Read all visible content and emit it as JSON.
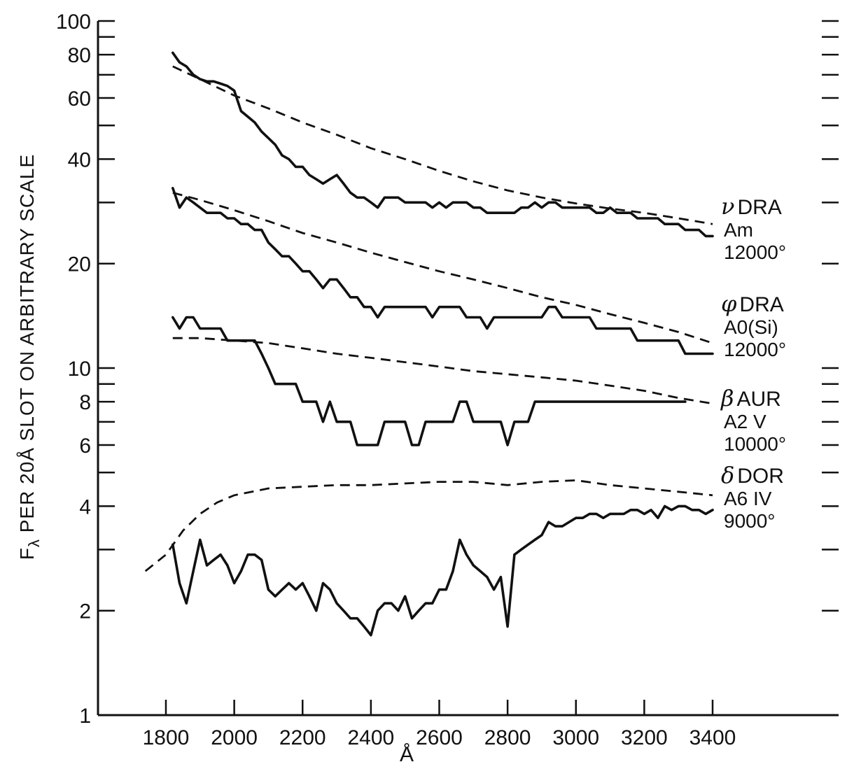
{
  "chart_data": {
    "type": "line",
    "xlabel": "Å",
    "ylabel": "F",
    "ylabel_sub": "λ",
    "ylabel_rest": " PER 20Å SLOT ON ARBITRARY SCALE",
    "xlim": [
      1600,
      3500
    ],
    "ylim": [
      1,
      100
    ],
    "y_scale": "log",
    "grid": false,
    "x_ticks": [
      1800,
      2000,
      2200,
      2400,
      2600,
      2800,
      3000,
      3200,
      3400
    ],
    "x_tick_labels": [
      "1800",
      "2000",
      "2200",
      "2400",
      "2600",
      "2800",
      "3000",
      "3200",
      "3400"
    ],
    "y_ticks_labeled": [
      1,
      2,
      4,
      6,
      8,
      10,
      20,
      40,
      60,
      80,
      100
    ],
    "y_tick_labels": [
      "1",
      "2",
      "4",
      "6",
      "8",
      "10",
      "20",
      "40",
      "60",
      "80",
      "100"
    ],
    "y_ticks_minor": [
      3,
      5,
      7,
      9,
      30,
      50,
      70,
      90
    ],
    "stars": [
      {
        "greek": "ν",
        "name": "DRA",
        "type": "Am",
        "temp": "12000°",
        "observed": {
          "x": [
            1820,
            1840,
            1860,
            1880,
            1900,
            1920,
            1940,
            1960,
            1980,
            2000,
            2020,
            2040,
            2060,
            2080,
            2100,
            2120,
            2140,
            2160,
            2180,
            2200,
            2220,
            2240,
            2260,
            2280,
            2300,
            2320,
            2340,
            2360,
            2380,
            2400,
            2420,
            2440,
            2460,
            2480,
            2500,
            2520,
            2540,
            2560,
            2580,
            2600,
            2620,
            2640,
            2660,
            2680,
            2700,
            2720,
            2740,
            2760,
            2780,
            2800,
            2820,
            2840,
            2860,
            2880,
            2900,
            2920,
            2940,
            2960,
            2980,
            3000,
            3020,
            3040,
            3060,
            3080,
            3100,
            3120,
            3140,
            3160,
            3180,
            3200,
            3220,
            3240,
            3260,
            3280,
            3300,
            3320,
            3340,
            3360,
            3380,
            3400
          ],
          "y": [
            81,
            76,
            74,
            70,
            68,
            67,
            67,
            66,
            65,
            63,
            55,
            53,
            51,
            48,
            46,
            44,
            41,
            40,
            38,
            38,
            36,
            35,
            34,
            35,
            36,
            34,
            32,
            31,
            31,
            30,
            29,
            31,
            31,
            31,
            30,
            30,
            30,
            30,
            29,
            30,
            29,
            30,
            30,
            30,
            29,
            29,
            28,
            28,
            28,
            28,
            28,
            29,
            29,
            30,
            29,
            30,
            30,
            29,
            29,
            29,
            29,
            29,
            28,
            28,
            29,
            28,
            28,
            28,
            27,
            27,
            27,
            27,
            26,
            26,
            26,
            25,
            25,
            25,
            24,
            24
          ]
        },
        "fit": {
          "x": [
            1820,
            1900,
            2000,
            2100,
            2200,
            2300,
            2400,
            2500,
            2600,
            2700,
            2800,
            2900,
            3000,
            3100,
            3200,
            3300,
            3400
          ],
          "y": [
            74,
            68,
            61,
            56,
            51,
            47,
            43,
            40,
            37,
            34.5,
            32.5,
            31,
            29.8,
            28.8,
            28,
            27,
            26
          ]
        }
      },
      {
        "greek": "φ",
        "name": "DRA",
        "type": "A0(Si)",
        "temp": "12000°",
        "observed": {
          "x": [
            1820,
            1840,
            1860,
            1880,
            1900,
            1920,
            1940,
            1960,
            1980,
            2000,
            2020,
            2040,
            2060,
            2080,
            2100,
            2120,
            2140,
            2160,
            2180,
            2200,
            2220,
            2240,
            2260,
            2280,
            2300,
            2320,
            2340,
            2360,
            2380,
            2400,
            2420,
            2440,
            2460,
            2480,
            2500,
            2520,
            2540,
            2560,
            2580,
            2600,
            2620,
            2640,
            2660,
            2680,
            2700,
            2720,
            2740,
            2760,
            2780,
            2800,
            2820,
            2840,
            2860,
            2880,
            2900,
            2920,
            2940,
            2960,
            2980,
            3000,
            3020,
            3040,
            3060,
            3080,
            3100,
            3120,
            3140,
            3160,
            3180,
            3200,
            3220,
            3240,
            3260,
            3280,
            3300,
            3320,
            3340,
            3360,
            3380,
            3400
          ],
          "y": [
            33,
            29,
            31,
            30,
            29,
            28,
            28,
            28,
            27,
            27,
            26,
            26,
            25,
            25,
            23,
            22,
            21,
            21,
            20,
            19,
            19,
            18,
            17,
            18,
            18,
            17,
            16,
            16,
            15,
            15,
            14,
            15,
            15,
            15,
            15,
            15,
            15,
            15,
            14,
            15,
            15,
            15,
            15,
            14,
            14,
            14,
            13,
            14,
            14,
            14,
            14,
            14,
            14,
            14,
            14,
            15,
            15,
            14,
            14,
            14,
            14,
            14,
            13,
            13,
            13,
            13,
            13,
            13,
            12,
            12,
            12,
            12,
            12,
            12,
            12,
            11,
            11,
            11,
            11,
            11
          ]
        },
        "fit": {
          "x": [
            1820,
            1900,
            2000,
            2100,
            2200,
            2300,
            2400,
            2500,
            2600,
            2700,
            2800,
            2900,
            3000,
            3100,
            3200,
            3300,
            3400
          ],
          "y": [
            32,
            30.5,
            28.5,
            26.5,
            24.5,
            23,
            21.5,
            20.2,
            19,
            18,
            17,
            16,
            15.2,
            14.3,
            13.5,
            12.7,
            11.8
          ]
        }
      },
      {
        "greek": "β",
        "name": "AUR",
        "type": "A2 V",
        "temp": "10000°",
        "observed": {
          "x": [
            1820,
            1840,
            1860,
            1880,
            1900,
            1920,
            1940,
            1960,
            1980,
            2000,
            2020,
            2040,
            2060,
            2080,
            2100,
            2120,
            2140,
            2160,
            2180,
            2200,
            2220,
            2240,
            2260,
            2280,
            2300,
            2320,
            2340,
            2360,
            2380,
            2400,
            2420,
            2440,
            2460,
            2480,
            2500,
            2520,
            2540,
            2560,
            2580,
            2600,
            2620,
            2640,
            2660,
            2680,
            2700,
            2720,
            2740,
            2760,
            2780,
            2800,
            2820,
            2840,
            2860,
            2880,
            2900,
            2920,
            2940,
            2960,
            2980,
            3000,
            3020,
            3040,
            3060,
            3080,
            3100,
            3120,
            3140,
            3160,
            3180,
            3200,
            3220,
            3240,
            3260,
            3280,
            3300,
            3320
          ],
          "y": [
            14,
            13,
            14,
            14,
            13,
            13,
            13,
            13,
            12,
            12,
            12,
            12,
            12,
            11,
            10,
            9,
            9,
            9,
            9,
            8,
            8,
            8,
            7,
            8,
            7,
            7,
            7,
            6,
            6,
            6,
            6,
            7,
            7,
            7,
            7,
            6,
            6,
            7,
            7,
            7,
            7,
            7,
            8,
            8,
            7,
            7,
            7,
            7,
            7,
            6,
            7,
            7,
            7,
            8,
            8,
            8,
            8,
            8,
            8,
            8,
            8,
            8,
            8,
            8,
            8,
            8,
            8,
            8,
            8,
            8,
            8,
            8,
            8,
            8,
            8,
            8
          ]
        },
        "fit": {
          "x": [
            1820,
            1900,
            2000,
            2100,
            2200,
            2300,
            2400,
            2500,
            2600,
            2700,
            2800,
            2900,
            3000,
            3100,
            3200,
            3300,
            3400
          ],
          "y": [
            12.2,
            12.2,
            12.0,
            11.8,
            11.4,
            11.0,
            10.7,
            10.4,
            10.1,
            9.8,
            9.6,
            9.4,
            9.2,
            8.9,
            8.6,
            8.2,
            7.9
          ]
        }
      },
      {
        "greek": "δ",
        "name": "DOR",
        "type": "A6 IV",
        "temp": "9000°",
        "observed": {
          "x": [
            1820,
            1840,
            1860,
            1880,
            1900,
            1920,
            1940,
            1960,
            1980,
            2000,
            2020,
            2040,
            2060,
            2080,
            2100,
            2120,
            2140,
            2160,
            2180,
            2200,
            2220,
            2240,
            2260,
            2280,
            2300,
            2320,
            2340,
            2360,
            2380,
            2400,
            2420,
            2440,
            2460,
            2480,
            2500,
            2520,
            2540,
            2560,
            2580,
            2600,
            2620,
            2640,
            2660,
            2680,
            2700,
            2720,
            2740,
            2760,
            2780,
            2800,
            2820,
            2840,
            2860,
            2880,
            2900,
            2920,
            2940,
            2960,
            2980,
            3000,
            3020,
            3040,
            3060,
            3080,
            3100,
            3120,
            3140,
            3160,
            3180,
            3200,
            3220,
            3240,
            3260,
            3280,
            3300,
            3320,
            3340,
            3360,
            3380,
            3400
          ],
          "y": [
            3.1,
            2.4,
            2.1,
            2.6,
            3.2,
            2.7,
            2.8,
            2.9,
            2.7,
            2.4,
            2.6,
            2.9,
            2.9,
            2.8,
            2.3,
            2.2,
            2.3,
            2.4,
            2.3,
            2.4,
            2.2,
            2.0,
            2.4,
            2.3,
            2.1,
            2.0,
            1.9,
            1.9,
            1.8,
            1.7,
            2.0,
            2.1,
            2.1,
            2.0,
            2.2,
            1.9,
            2.0,
            2.1,
            2.1,
            2.3,
            2.3,
            2.6,
            3.2,
            2.9,
            2.7,
            2.6,
            2.5,
            2.3,
            2.5,
            1.8,
            2.9,
            3.0,
            3.1,
            3.2,
            3.3,
            3.6,
            3.5,
            3.5,
            3.6,
            3.7,
            3.7,
            3.8,
            3.8,
            3.7,
            3.8,
            3.8,
            3.8,
            3.9,
            3.9,
            3.8,
            3.9,
            3.7,
            4.0,
            3.9,
            4.0,
            4.0,
            3.9,
            3.9,
            3.8,
            3.9
          ]
        },
        "fit": {
          "x": [
            1740,
            1800,
            1850,
            1900,
            1950,
            2000,
            2100,
            2200,
            2300,
            2400,
            2500,
            2600,
            2700,
            2800,
            2900,
            3000,
            3100,
            3200,
            3300,
            3400
          ],
          "y": [
            2.6,
            2.9,
            3.4,
            3.8,
            4.1,
            4.3,
            4.5,
            4.55,
            4.6,
            4.6,
            4.65,
            4.7,
            4.7,
            4.6,
            4.7,
            4.75,
            4.6,
            4.5,
            4.4,
            4.3
          ]
        }
      }
    ]
  }
}
